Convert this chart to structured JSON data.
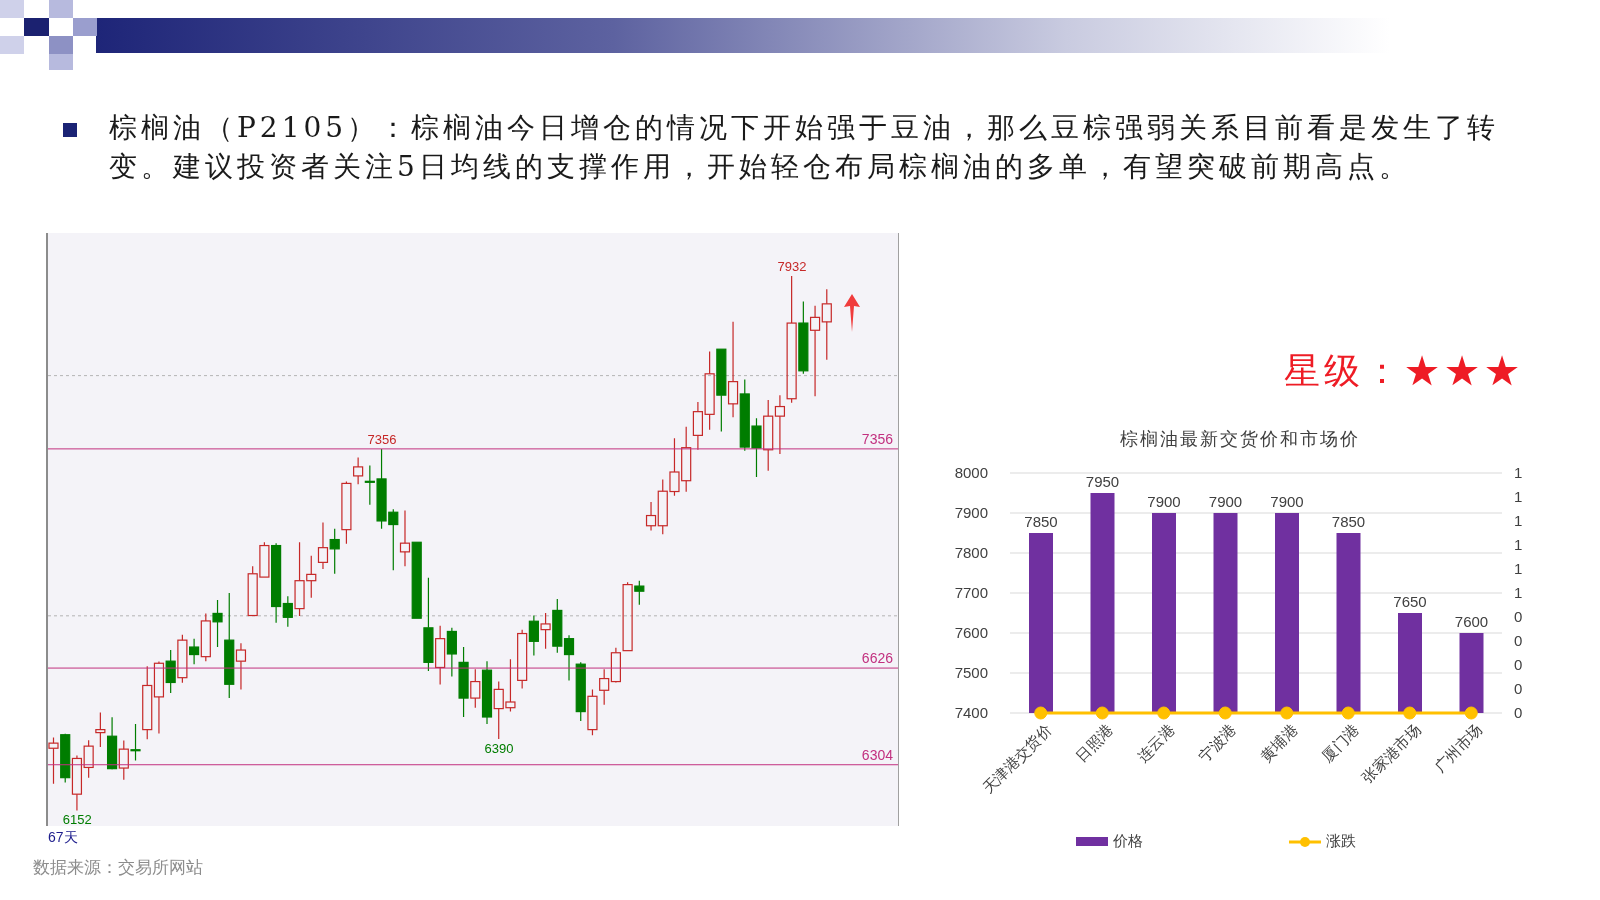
{
  "chart_data": [
    {
      "type": "other",
      "annotations": [
        "棕榈油（P2105）：棕榈油今日增仓的情况下开始强于豆油，那么豆棕强弱关系目前看是发生了转变。建议投资者关注5日均线的支撑作用，开始轻仓布局棕榈油的多单，有望突破前期高点。"
      ]
    },
    {
      "type": "candlestick",
      "categories": [
        null,
        null,
        null,
        null,
        null,
        null,
        null,
        null,
        null,
        null,
        null,
        null,
        null,
        null,
        null,
        null,
        null,
        null,
        null,
        null,
        null,
        null,
        null,
        null,
        null,
        null,
        null,
        null,
        null,
        null,
        null,
        null,
        null,
        null,
        null,
        null,
        null,
        null,
        null,
        null,
        null,
        null,
        null,
        null,
        null,
        null,
        null,
        null,
        null,
        null,
        null,
        null,
        null,
        null,
        null,
        null,
        null,
        null,
        null,
        null,
        null,
        null,
        null,
        null,
        null,
        null,
        null
      ],
      "ohlc": [
        [
          6359,
          6395,
          6241,
          6376
        ],
        [
          6404,
          6407,
          6245,
          6261
        ],
        [
          6206,
          6335,
          6152,
          6325
        ],
        [
          6295,
          6386,
          6261,
          6366
        ],
        [
          6411,
          6478,
          6363,
          6421
        ],
        [
          6399,
          6462,
          6289,
          6291
        ],
        [
          6293,
          6385,
          6254,
          6356
        ],
        [
          6354,
          6440,
          6318,
          6353
        ],
        [
          6421,
          6632,
          6389,
          6568
        ],
        [
          6530,
          6648,
          6408,
          6642
        ],
        [
          6649,
          6686,
          6543,
          6578
        ],
        [
          6594,
          6737,
          6577,
          6719
        ],
        [
          6696,
          6724,
          6639,
          6671
        ],
        [
          6664,
          6808,
          6649,
          6783
        ],
        [
          6808,
          6853,
          6696,
          6780
        ],
        [
          6719,
          6876,
          6526,
          6572
        ],
        [
          6649,
          6709,
          6555,
          6686
        ],
        [
          6801,
          6965,
          6801,
          6940
        ],
        [
          6929,
          7045,
          6929,
          7034
        ],
        [
          7034,
          7042,
          6777,
          6831
        ],
        [
          6841,
          6865,
          6764,
          6795
        ],
        [
          6824,
          7045,
          6799,
          6917
        ],
        [
          6917,
          7000,
          6860,
          6938
        ],
        [
          6978,
          7111,
          6956,
          7027
        ],
        [
          7054,
          7090,
          6940,
          7023
        ],
        [
          7087,
          7247,
          7040,
          7241
        ],
        [
          7266,
          7327,
          7238,
          7296
        ],
        [
          7248,
          7301,
          7170,
          7246
        ],
        [
          7256,
          7356,
          7090,
          7116
        ],
        [
          7145,
          7155,
          6952,
          7104
        ],
        [
          7013,
          7151,
          6965,
          7042
        ],
        [
          7045,
          7045,
          6792,
          6792
        ],
        [
          6760,
          6927,
          6616,
          6645
        ],
        [
          6628,
          6767,
          6571,
          6724
        ],
        [
          6748,
          6760,
          6598,
          6673
        ],
        [
          6645,
          6696,
          6463,
          6526
        ],
        [
          6526,
          6622,
          6494,
          6581
        ],
        [
          6619,
          6649,
          6440,
          6463
        ],
        [
          6491,
          6581,
          6390,
          6555
        ],
        [
          6494,
          6655,
          6481,
          6513
        ],
        [
          6585,
          6754,
          6558,
          6741
        ],
        [
          6782,
          6801,
          6668,
          6715
        ],
        [
          6754,
          6809,
          6690,
          6773
        ],
        [
          6818,
          6856,
          6677,
          6699
        ],
        [
          6724,
          6735,
          6585,
          6671
        ],
        [
          6639,
          6645,
          6450,
          6481
        ],
        [
          6421,
          6555,
          6402,
          6532
        ],
        [
          6552,
          6622,
          6504,
          6591
        ],
        [
          6581,
          6694,
          6578,
          6677
        ],
        [
          6684,
          6912,
          6684,
          6904
        ],
        [
          6899,
          6917,
          6837,
          6882
        ],
        [
          7100,
          7179,
          7084,
          7134
        ],
        [
          7100,
          7254,
          7072,
          7215
        ],
        [
          7214,
          7391,
          7200,
          7279
        ],
        [
          7250,
          7430,
          7213,
          7360
        ],
        [
          7401,
          7512,
          7353,
          7480
        ],
        [
          7471,
          7680,
          7420,
          7606
        ],
        [
          7688,
          7688,
          7414,
          7535
        ],
        [
          7506,
          7779,
          7461,
          7580
        ],
        [
          7539,
          7587,
          7350,
          7362
        ],
        [
          7432,
          7458,
          7262,
          7359
        ],
        [
          7353,
          7519,
          7283,
          7465
        ],
        [
          7465,
          7535,
          7339,
          7497
        ],
        [
          7523,
          7932,
          7510,
          7775
        ],
        [
          7775,
          7847,
          7606,
          7616
        ],
        [
          7751,
          7833,
          7531,
          7794
        ],
        [
          7779,
          7888,
          7653,
          7839
        ]
      ],
      "colors": [
        "#c62828",
        "#007d00",
        "#c62828",
        "#c62828",
        "#c62828",
        "#007d00",
        "#c62828",
        "#007d00",
        "#c62828",
        "#c62828",
        "#007d00",
        "#c62828",
        "#007d00",
        "#c62828",
        "#007d00",
        "#007d00",
        "#c62828",
        "#c62828",
        "#c62828",
        "#007d00",
        "#007d00",
        "#c62828",
        "#c62828",
        "#c62828",
        "#007d00",
        "#c62828",
        "#c62828",
        "#007d00",
        "#007d00",
        "#007d00",
        "#c62828",
        "#007d00",
        "#007d00",
        "#c62828",
        "#007d00",
        "#007d00",
        "#c62828",
        "#007d00",
        "#c62828",
        "#c62828",
        "#c62828",
        "#007d00",
        "#c62828",
        "#007d00",
        "#007d00",
        "#007d00",
        "#c62828",
        "#c62828",
        "#c62828",
        "#c62828",
        "#007d00",
        "#c62828",
        "#c62828",
        "#c62828",
        "#c62828",
        "#c62828",
        "#c62828",
        "#007d00",
        "#c62828",
        "#007d00",
        "#007d00",
        "#c62828",
        "#c62828",
        "#c62828",
        "#007d00",
        "#c62828",
        "#c62828"
      ],
      "ylim": [
        6100,
        8075
      ],
      "yticks": [
        {
          "value": 6800,
          "label": null
        },
        {
          "value": 7600,
          "label": null
        }
      ],
      "grid": "y",
      "tick_labels": false,
      "ref_lines": [
        {
          "axis": "y",
          "value": 7356,
          "label": "7356",
          "color": "#c2307f"
        },
        {
          "axis": "y",
          "value": 6626,
          "label": "6626",
          "color": "#c2307f"
        },
        {
          "axis": "y",
          "value": 6304,
          "label": "6304",
          "color": "#c2307f"
        }
      ],
      "annotations": [
        {
          "text": "7932",
          "y": 7932
        },
        {
          "text": "7356",
          "y": 7356
        },
        {
          "text": "6390",
          "y": 6390
        },
        {
          "text": "6152",
          "y": 6152
        },
        "67天",
        "数据来源：交易所网站"
      ]
    },
    {
      "type": "bar",
      "title": "棕榈油最新交货价和市场价",
      "categories": [
        "天津港交货价",
        "日照港",
        "连云港",
        "宁波港",
        "黄埔港",
        "厦门港",
        "张家港市场",
        "广州市场"
      ],
      "series": [
        {
          "name": "价格",
          "type": "bar",
          "color": "#7030a0",
          "values": [
            7850,
            7950,
            7900,
            7900,
            7900,
            7850,
            7650,
            7600
          ],
          "value_labels": [
            "7850",
            "7950",
            "7900",
            "7900",
            "7900",
            "7850",
            "7650",
            "7600"
          ]
        },
        {
          "name": "涨跌",
          "type": "line",
          "color": "#ffc000",
          "axis": "y2",
          "values": [
            0,
            0,
            0,
            0,
            0,
            0,
            0,
            0
          ]
        }
      ],
      "ylim": [
        7400,
        8000
      ],
      "yticks": [
        7400,
        7500,
        7600,
        7700,
        7800,
        7900,
        8000
      ],
      "y2lim": [
        0,
        1
      ],
      "y2ticks": [
        0,
        {
          "value": 0.1,
          "label": "0"
        },
        {
          "value": 0.2,
          "label": "0"
        },
        {
          "value": 0.3,
          "label": "0"
        },
        {
          "value": 0.4,
          "label": "0"
        },
        {
          "value": 0.5,
          "label": "1"
        },
        {
          "value": 0.6,
          "label": "1"
        },
        {
          "value": 0.7,
          "label": "1"
        },
        {
          "value": 0.8,
          "label": "1"
        },
        {
          "value": 0.9,
          "label": "1"
        },
        1
      ],
      "grid": "y",
      "legend": "bottom",
      "marker": "circle",
      "annotations": [
        "星级：★★★"
      ]
    }
  ]
}
